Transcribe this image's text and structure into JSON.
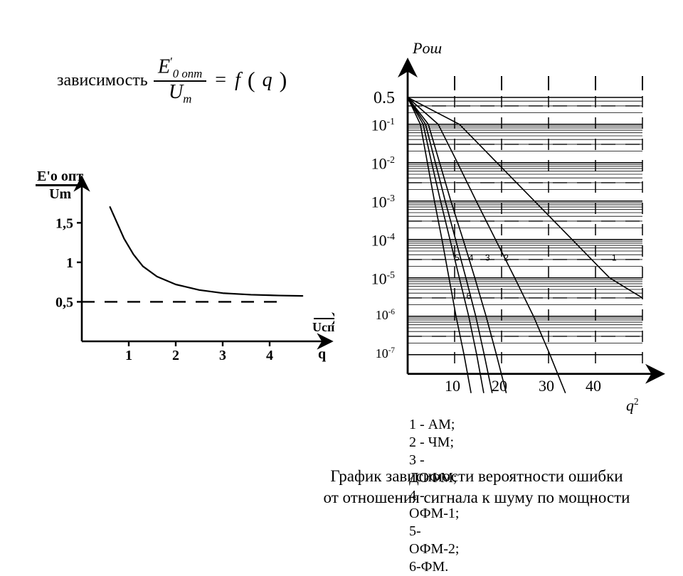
{
  "theme": {
    "bg": "#ffffff",
    "stroke": "#000000",
    "grid": "#000000",
    "text": "#000000"
  },
  "formula": {
    "word": "зависимость",
    "numerator": {
      "sym": "E",
      "prime": "'",
      "sub1": "0",
      "sub2": " опт"
    },
    "denom": {
      "sym": "U",
      "sub": "m"
    },
    "rhs_f": "f",
    "rhs_arg": "q",
    "equals": "="
  },
  "left_chart": {
    "type": "line",
    "y_axis_label": {
      "top": "E'о опт",
      "bot": "Um"
    },
    "x_axis_label": "q",
    "x_axis_over": "Uсп",
    "y_ticks": [
      {
        "v": 0.5,
        "label": "0,5"
      },
      {
        "v": 1,
        "label": "1"
      },
      {
        "v": 1.5,
        "label": "1,5"
      }
    ],
    "x_ticks": [
      {
        "v": 1,
        "label": "1"
      },
      {
        "v": 2,
        "label": "2"
      },
      {
        "v": 3,
        "label": "3"
      },
      {
        "v": 4,
        "label": "4"
      }
    ],
    "ylim": [
      0,
      1.8
    ],
    "xlim": [
      0,
      5
    ],
    "dashed_ref": 0.5,
    "series": [
      {
        "q": 0.6,
        "y": 1.7
      },
      {
        "q": 0.75,
        "y": 1.5
      },
      {
        "q": 0.9,
        "y": 1.3
      },
      {
        "q": 1.1,
        "y": 1.1
      },
      {
        "q": 1.3,
        "y": 0.95
      },
      {
        "q": 1.6,
        "y": 0.82
      },
      {
        "q": 2.0,
        "y": 0.72
      },
      {
        "q": 2.5,
        "y": 0.65
      },
      {
        "q": 3.0,
        "y": 0.61
      },
      {
        "q": 3.6,
        "y": 0.59
      },
      {
        "q": 4.2,
        "y": 0.58
      },
      {
        "q": 4.7,
        "y": 0.575
      }
    ],
    "line_width": 2.2,
    "tick_font": 20,
    "label_font": 20
  },
  "right_chart": {
    "type": "semilog-y",
    "title": "Pош",
    "title_style": "italic",
    "x_label": "q",
    "x_label_exp": "2",
    "xlim": [
      0,
      50
    ],
    "x_ticks": [
      {
        "v": 10,
        "label": "10"
      },
      {
        "v": 20,
        "label": "20"
      },
      {
        "v": 30,
        "label": "30"
      },
      {
        "v": 40,
        "label": "40"
      }
    ],
    "y_ticks": [
      {
        "exp": "0.5",
        "label": "0.5",
        "plain": true
      },
      {
        "exp": -1,
        "label": "10"
      },
      {
        "exp": -2,
        "label": "10"
      },
      {
        "exp": -3,
        "label": "10"
      },
      {
        "exp": -4,
        "label": "10"
      },
      {
        "exp": -5,
        "label": "10"
      },
      {
        "exp": -6,
        "label": "10",
        "small": true
      },
      {
        "exp": -7,
        "label": "10",
        "small": true
      }
    ],
    "log_rows_per_decade": [
      "1",
      "2",
      "3",
      "4",
      "5",
      "6",
      "7",
      "8",
      "9"
    ],
    "dashed_vert": [
      10,
      20,
      30,
      40,
      50
    ],
    "dashed_top_stub": [
      10,
      20,
      30,
      40,
      50
    ],
    "series": [
      {
        "id": "6",
        "pts": [
          [
            0,
            0.5
          ],
          [
            2.7,
            0.1
          ],
          [
            4.2,
            0.01
          ],
          [
            5.7,
            0.001
          ],
          [
            7.3,
            0.0001
          ],
          [
            8.8,
            1e-05
          ],
          [
            10.3,
            1e-06
          ],
          [
            12,
            1e-07
          ],
          [
            13.5,
            1e-08
          ]
        ]
      },
      {
        "id": "5",
        "pts": [
          [
            0,
            0.5
          ],
          [
            3.3,
            0.1
          ],
          [
            5.1,
            0.01
          ],
          [
            7,
            0.001
          ],
          [
            9,
            0.0001
          ],
          [
            11,
            1e-05
          ],
          [
            13,
            1e-06
          ],
          [
            14.7,
            1e-07
          ],
          [
            16.2,
            1e-08
          ]
        ]
      },
      {
        "id": "4",
        "pts": [
          [
            0,
            0.5
          ],
          [
            3.8,
            0.1
          ],
          [
            5.9,
            0.01
          ],
          [
            8,
            0.001
          ],
          [
            10.2,
            0.0001
          ],
          [
            12.4,
            1e-05
          ],
          [
            14.5,
            1e-06
          ],
          [
            16.3,
            1e-07
          ],
          [
            18,
            1e-08
          ]
        ]
      },
      {
        "id": "3",
        "pts": [
          [
            0,
            0.5
          ],
          [
            4.4,
            0.1
          ],
          [
            6.8,
            0.01
          ],
          [
            9.2,
            0.001
          ],
          [
            11.8,
            0.0001
          ],
          [
            14.3,
            1e-05
          ],
          [
            16.7,
            1e-06
          ],
          [
            18.9,
            1e-07
          ],
          [
            21,
            1e-08
          ]
        ]
      },
      {
        "id": "2",
        "pts": [
          [
            0,
            0.5
          ],
          [
            6.5,
            0.1
          ],
          [
            10.6,
            0.01
          ],
          [
            14.6,
            0.001
          ],
          [
            18.7,
            0.0001
          ],
          [
            22.8,
            1e-05
          ],
          [
            26.8,
            1e-06
          ],
          [
            30.3,
            1e-07
          ],
          [
            33.6,
            1e-08
          ]
        ]
      },
      {
        "id": "1",
        "pts": [
          [
            0,
            0.5
          ],
          [
            11,
            0.1
          ],
          [
            19,
            0.01
          ],
          [
            27,
            0.001
          ],
          [
            35,
            0.0001
          ],
          [
            43,
            1e-05
          ],
          [
            50,
            3e-06
          ]
        ]
      }
    ],
    "series_labels": [
      {
        "id": "1",
        "x": 44.0,
        "yexp": -4.55
      },
      {
        "id": "2",
        "x": 21.0,
        "yexp": -4.55
      },
      {
        "id": "3",
        "x": 17.0,
        "yexp": -4.55
      },
      {
        "id": "4",
        "x": 13.5,
        "yexp": -4.55
      },
      {
        "id": "5",
        "x": 10.5,
        "yexp": -4.55
      },
      {
        "id": "6",
        "x": 13.0,
        "yexp": -5.55
      }
    ],
    "line_width": 1.6,
    "legend": {
      "l1": "1 - АМ; 2 - ЧМ; 3 - ДОФМ;",
      "l2": "4 - ОФМ-1; 5-ОФМ-2; 6-ФМ."
    }
  },
  "caption": {
    "l1": "График зависимости вероятности ошибки",
    "l2": "от отношения сигнала к шуму по мощности"
  }
}
